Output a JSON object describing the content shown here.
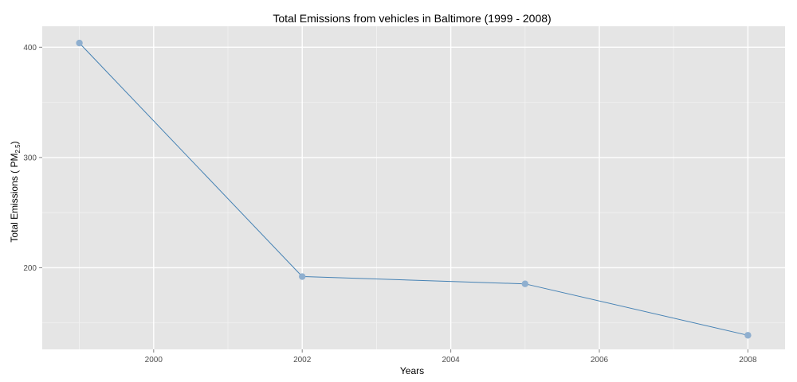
{
  "chart_data": {
    "type": "line",
    "title": "Total Emissions from vehicles in Baltimore (1999 - 2008)",
    "xlabel": "Years",
    "ylabel": {
      "prefix": "Total Emissions ( PM",
      "subscript": "2.5",
      "suffix": ")"
    },
    "x": [
      1999,
      2002,
      2005,
      2008
    ],
    "series": [
      {
        "values": [
          403.8,
          192.0,
          185.4,
          138.8
        ]
      }
    ],
    "xlim": [
      1998.5,
      2008.5
    ],
    "ylim": [
      126,
      419
    ],
    "x_ticks": [
      2000,
      2002,
      2004,
      2006,
      2008
    ],
    "x_tick_labels": [
      "2000",
      "2002",
      "2004",
      "2006",
      "2008"
    ],
    "x_minor_ticks": [
      1999,
      2001,
      2003,
      2005,
      2007
    ],
    "y_ticks": [
      200,
      300,
      400
    ],
    "y_tick_labels": [
      "200",
      "300",
      "400"
    ],
    "y_minor_ticks": [
      150,
      250,
      350
    ],
    "grid": true,
    "legend": "none",
    "colors": {
      "panel_background": "#e5e5e5",
      "grid_major": "#ffffff",
      "grid_minor": "#f2f2f2",
      "line": "#4682b4",
      "point": "#8fafcf"
    }
  }
}
